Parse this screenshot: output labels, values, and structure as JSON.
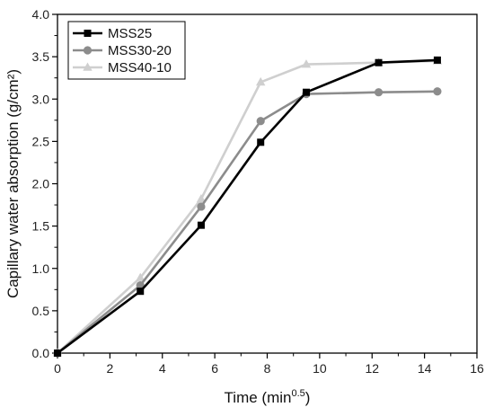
{
  "chart_data": {
    "type": "line",
    "title": "",
    "xlabel": "Time (min",
    "xlabel_sup": "0.5",
    "xlabel_suffix": ")",
    "ylabel": "Capillary water absorption (g/cm²)",
    "xlim": [
      0,
      16
    ],
    "ylim": [
      0,
      4.0
    ],
    "x_ticks": [
      0,
      2,
      4,
      6,
      8,
      10,
      12,
      14,
      16
    ],
    "y_ticks": [
      0.0,
      0.5,
      1.0,
      1.5,
      2.0,
      2.5,
      3.0,
      3.5,
      4.0
    ],
    "x_tick_labels": [
      "0",
      "2",
      "4",
      "6",
      "8",
      "10",
      "12",
      "14",
      "16"
    ],
    "y_tick_labels": [
      "0.0",
      "0.5",
      "1.0",
      "1.5",
      "2.0",
      "2.5",
      "3.0",
      "3.5",
      "4.0"
    ],
    "grid": false,
    "legend_position": "top-left",
    "series": [
      {
        "name": "MSS25",
        "color": "#000000",
        "marker": "square",
        "x": [
          0,
          3.16,
          5.48,
          7.75,
          9.49,
          12.25,
          14.49
        ],
        "y": [
          0.0,
          0.73,
          1.51,
          2.49,
          3.08,
          3.43,
          3.46
        ]
      },
      {
        "name": "MSS30-20",
        "color": "#8c8c8c",
        "marker": "circle",
        "x": [
          0,
          3.16,
          5.48,
          7.75,
          9.49,
          12.25,
          14.49
        ],
        "y": [
          0.0,
          0.8,
          1.73,
          2.74,
          3.06,
          3.08,
          3.09
        ]
      },
      {
        "name": "MSS40-10",
        "color": "#cfcfcf",
        "marker": "triangle",
        "x": [
          0,
          3.16,
          5.48,
          7.75,
          9.49,
          12.25,
          14.49
        ],
        "y": [
          0.0,
          0.89,
          1.82,
          3.2,
          3.41,
          3.43,
          3.45
        ]
      }
    ]
  }
}
